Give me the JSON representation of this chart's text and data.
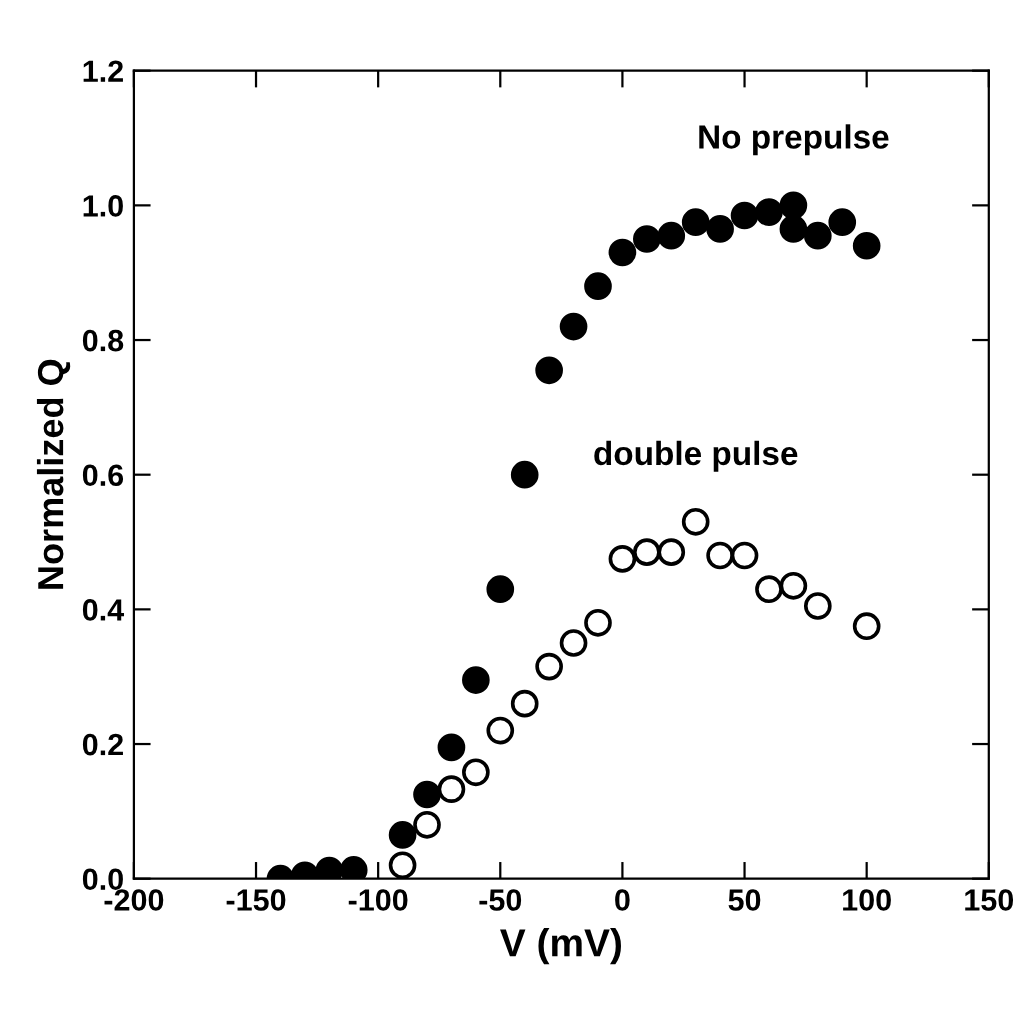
{
  "chart_data": {
    "type": "scatter",
    "xlabel": "V (mV)",
    "ylabel": "Normalized Q",
    "xlim": [
      -200,
      150
    ],
    "xticks": [
      -200,
      -150,
      -100,
      -50,
      0,
      50,
      100,
      150
    ],
    "ylim": [
      0.0,
      1.2
    ],
    "yticks": [
      {
        "value": 0,
        "label": "0.0"
      },
      {
        "value": 0.2,
        "label": "0.2"
      },
      {
        "value": 0.4,
        "label": "0.4"
      },
      {
        "value": 0.6,
        "label": "0.6"
      },
      {
        "value": 0.8,
        "label": "0.8"
      },
      {
        "value": 1.0,
        "label": "1.0"
      },
      {
        "value": 1.2,
        "label": "1.2"
      }
    ],
    "marker": "circle",
    "grid": false,
    "legend": "top right",
    "series": [
      {
        "name": "No prepulse",
        "color": "#000000",
        "x": [
          -140,
          -130,
          -120,
          -110,
          -90,
          -80,
          -70,
          -60,
          -50,
          -40,
          -30,
          -20,
          -10,
          0,
          10,
          20,
          30,
          40,
          50,
          60,
          70,
          70,
          80,
          90,
          100
        ],
        "values": [
          0.0,
          0.005,
          0.012,
          0.013,
          0.065,
          0.125,
          0.195,
          0.295,
          0.43,
          0.6,
          0.755,
          0.82,
          0.88,
          0.93,
          0.95,
          0.955,
          0.975,
          0.965,
          0.985,
          0.99,
          1.0,
          0.965,
          0.955,
          0.975,
          0.94
        ]
      },
      {
        "name": "double pulse",
        "color": "#ffffff",
        "x": [
          -90,
          -80,
          -70,
          -60,
          -50,
          -40,
          -30,
          -20,
          -10,
          0,
          10,
          20,
          30,
          40,
          50,
          60,
          70,
          80,
          100
        ],
        "values": [
          0.02,
          0.08,
          0.133,
          0.158,
          0.22,
          0.26,
          0.315,
          0.35,
          0.38,
          0.475,
          0.485,
          0.485,
          0.53,
          0.48,
          0.48,
          0.43,
          0.435,
          0.405,
          0.375
        ]
      }
    ]
  }
}
